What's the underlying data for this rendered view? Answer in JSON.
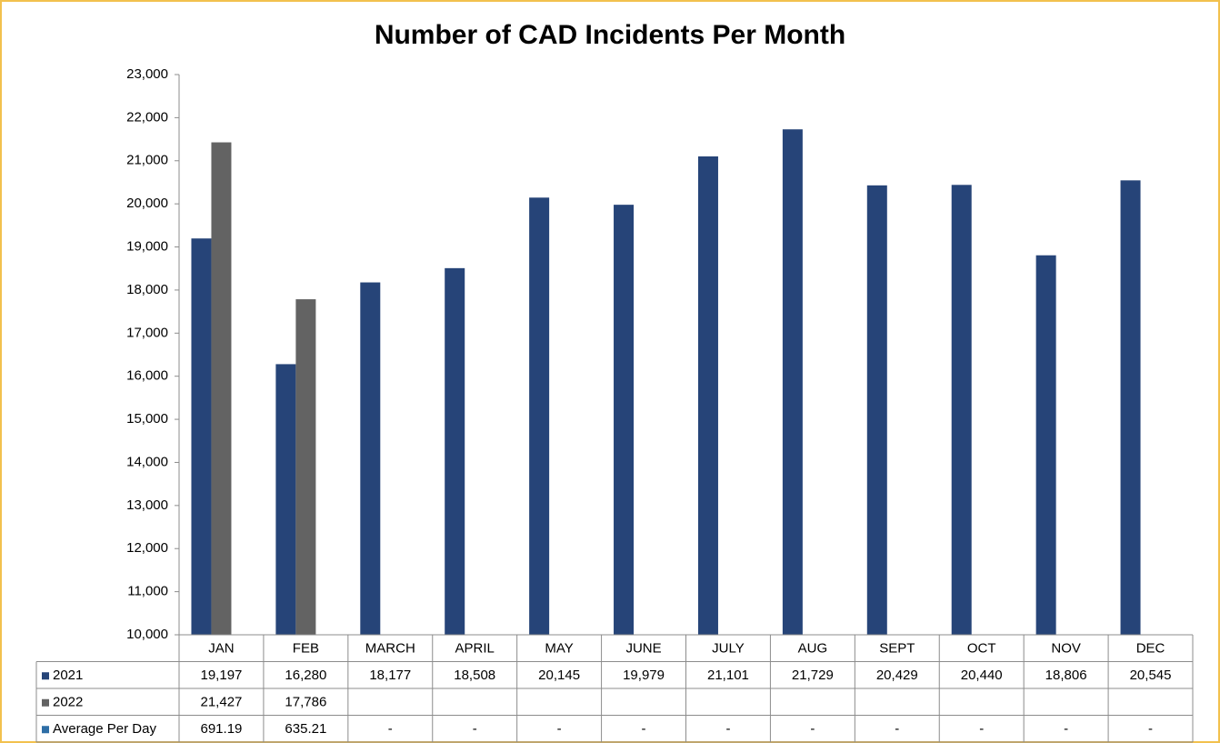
{
  "chart_data": {
    "type": "bar",
    "title": "Number of CAD Incidents Per Month",
    "categories": [
      "JAN",
      "FEB",
      "MARCH",
      "APRIL",
      "MAY",
      "JUNE",
      "JULY",
      "AUG",
      "SEPT",
      "OCT",
      "NOV",
      "DEC"
    ],
    "series": [
      {
        "name": "2021",
        "color": "#264478",
        "values": [
          19197,
          16280,
          18177,
          18508,
          20145,
          19979,
          21101,
          21729,
          20429,
          20440,
          18806,
          20545
        ],
        "value_labels": [
          "19,197",
          "16,280",
          "18,177",
          "18,508",
          "20,145",
          "19,979",
          "21,101",
          "21,729",
          "20,429",
          "20,440",
          "18,806",
          "20,545"
        ]
      },
      {
        "name": "2022",
        "color": "#636363",
        "values": [
          21427,
          17786,
          null,
          null,
          null,
          null,
          null,
          null,
          null,
          null,
          null,
          null
        ],
        "value_labels": [
          "21,427",
          "17,786",
          null,
          null,
          null,
          null,
          null,
          null,
          null,
          null,
          null,
          null
        ]
      },
      {
        "name": "Average Per Day",
        "color": "#2e6ea6",
        "values": [
          691.19,
          635.21,
          null,
          null,
          null,
          null,
          null,
          null,
          null,
          null,
          null,
          null
        ],
        "value_labels": [
          "691.19",
          "635.21",
          "-",
          "-",
          "-",
          "-",
          "-",
          "-",
          "-",
          "-",
          "-",
          "-"
        ]
      }
    ],
    "ylim": [
      10000,
      23000
    ],
    "yticks": [
      {
        "value": 10000,
        "label": "10,000"
      },
      {
        "value": 11000,
        "label": "11,000"
      },
      {
        "value": 12000,
        "label": "12,000"
      },
      {
        "value": 13000,
        "label": "13,000"
      },
      {
        "value": 14000,
        "label": "14,000"
      },
      {
        "value": 15000,
        "label": "15,000"
      },
      {
        "value": 16000,
        "label": "16,000"
      },
      {
        "value": 17000,
        "label": "17,000"
      },
      {
        "value": 18000,
        "label": "18,000"
      },
      {
        "value": 19000,
        "label": "19,000"
      },
      {
        "value": 20000,
        "label": "20,000"
      },
      {
        "value": 21000,
        "label": "21,000"
      },
      {
        "value": 22000,
        "label": "22,000"
      },
      {
        "value": 23000,
        "label": "23,000"
      }
    ],
    "grid": false
  }
}
